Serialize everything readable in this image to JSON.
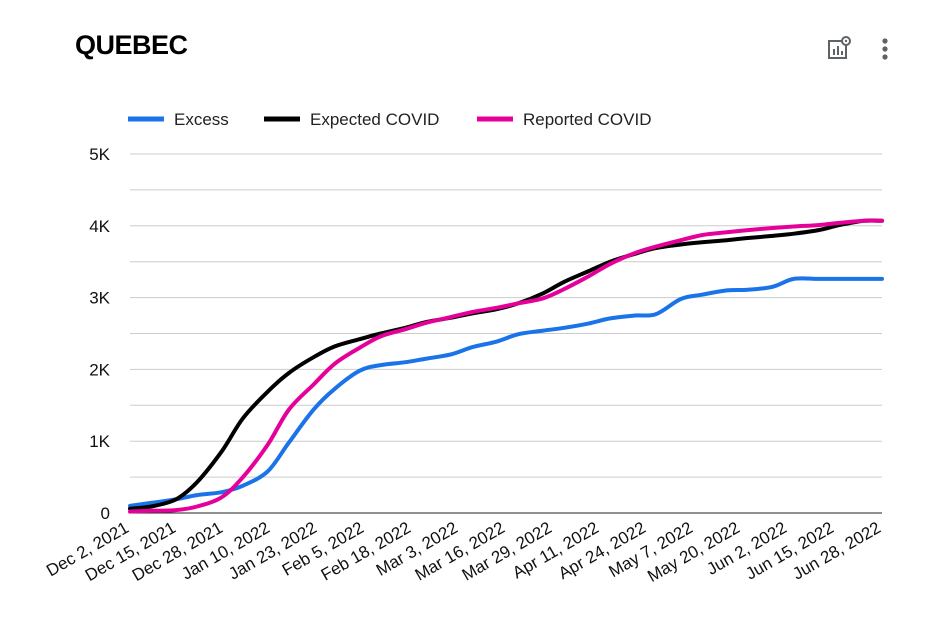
{
  "header": {
    "title": "QUEBEC",
    "chart_settings_icon": "chart-settings-icon",
    "more_icon": "more-vert-icon"
  },
  "colors": {
    "excess": "#1a73e8",
    "expected": "#000000",
    "reported": "#e6009a",
    "grid": "#cccccc"
  },
  "chart_data": {
    "type": "line",
    "title": "QUEBEC",
    "xlabel": "",
    "ylabel": "",
    "ylim": [
      0,
      5000
    ],
    "yticks": [
      0,
      1000,
      2000,
      3000,
      4000,
      5000
    ],
    "ytick_labels": [
      "0",
      "1K",
      "2K",
      "3K",
      "4K",
      "5K"
    ],
    "x_tick_labels": [
      "Dec 2, 2021",
      "Dec 15, 2021",
      "Dec 28, 2021",
      "Jan 10, 2022",
      "Jan 23, 2022",
      "Feb 5, 2022",
      "Feb 18, 2022",
      "Mar 3, 2022",
      "Mar 16, 2022",
      "Mar 29, 2022",
      "Apr 11, 2022",
      "Apr 24, 2022",
      "May 7, 2022",
      "May 20, 2022",
      "Jun 2, 2022",
      "Jun 15, 2022",
      "Jun 28, 2022"
    ],
    "grid": true,
    "legend_position": "top",
    "x": [
      "2021-12-02",
      "2021-12-08",
      "2021-12-15",
      "2021-12-21",
      "2021-12-28",
      "2022-01-03",
      "2022-01-10",
      "2022-01-16",
      "2022-01-23",
      "2022-01-29",
      "2022-02-05",
      "2022-02-11",
      "2022-02-18",
      "2022-02-24",
      "2022-03-03",
      "2022-03-09",
      "2022-03-16",
      "2022-03-22",
      "2022-03-29",
      "2022-04-04",
      "2022-04-11",
      "2022-04-17",
      "2022-04-24",
      "2022-04-30",
      "2022-05-07",
      "2022-05-13",
      "2022-05-20",
      "2022-05-26",
      "2022-06-02",
      "2022-06-08",
      "2022-06-15",
      "2022-06-21",
      "2022-06-28",
      "2022-07-03"
    ],
    "series": [
      {
        "name": "Excess",
        "color_key": "excess",
        "values": [
          100,
          140,
          190,
          250,
          290,
          380,
          580,
          980,
          1440,
          1730,
          1980,
          2060,
          2100,
          2150,
          2210,
          2310,
          2390,
          2490,
          2540,
          2580,
          2640,
          2710,
          2750,
          2770,
          2980,
          3040,
          3100,
          3110,
          3150,
          3260,
          3260,
          3260,
          3260,
          3260
        ]
      },
      {
        "name": "Expected COVID",
        "color_key": "expected",
        "values": [
          60,
          90,
          190,
          430,
          860,
          1320,
          1690,
          1950,
          2170,
          2320,
          2420,
          2500,
          2580,
          2660,
          2720,
          2780,
          2840,
          2920,
          3060,
          3220,
          3370,
          3500,
          3610,
          3690,
          3740,
          3770,
          3800,
          3830,
          3860,
          3890,
          3940,
          4010,
          4070,
          4070
        ]
      },
      {
        "name": "Reported COVID",
        "color_key": "reported",
        "values": [
          20,
          30,
          40,
          90,
          220,
          500,
          950,
          1440,
          1790,
          2080,
          2300,
          2460,
          2560,
          2650,
          2730,
          2800,
          2860,
          2920,
          2990,
          3120,
          3300,
          3470,
          3620,
          3710,
          3800,
          3870,
          3910,
          3940,
          3970,
          3990,
          4010,
          4040,
          4070,
          4070
        ]
      }
    ]
  }
}
